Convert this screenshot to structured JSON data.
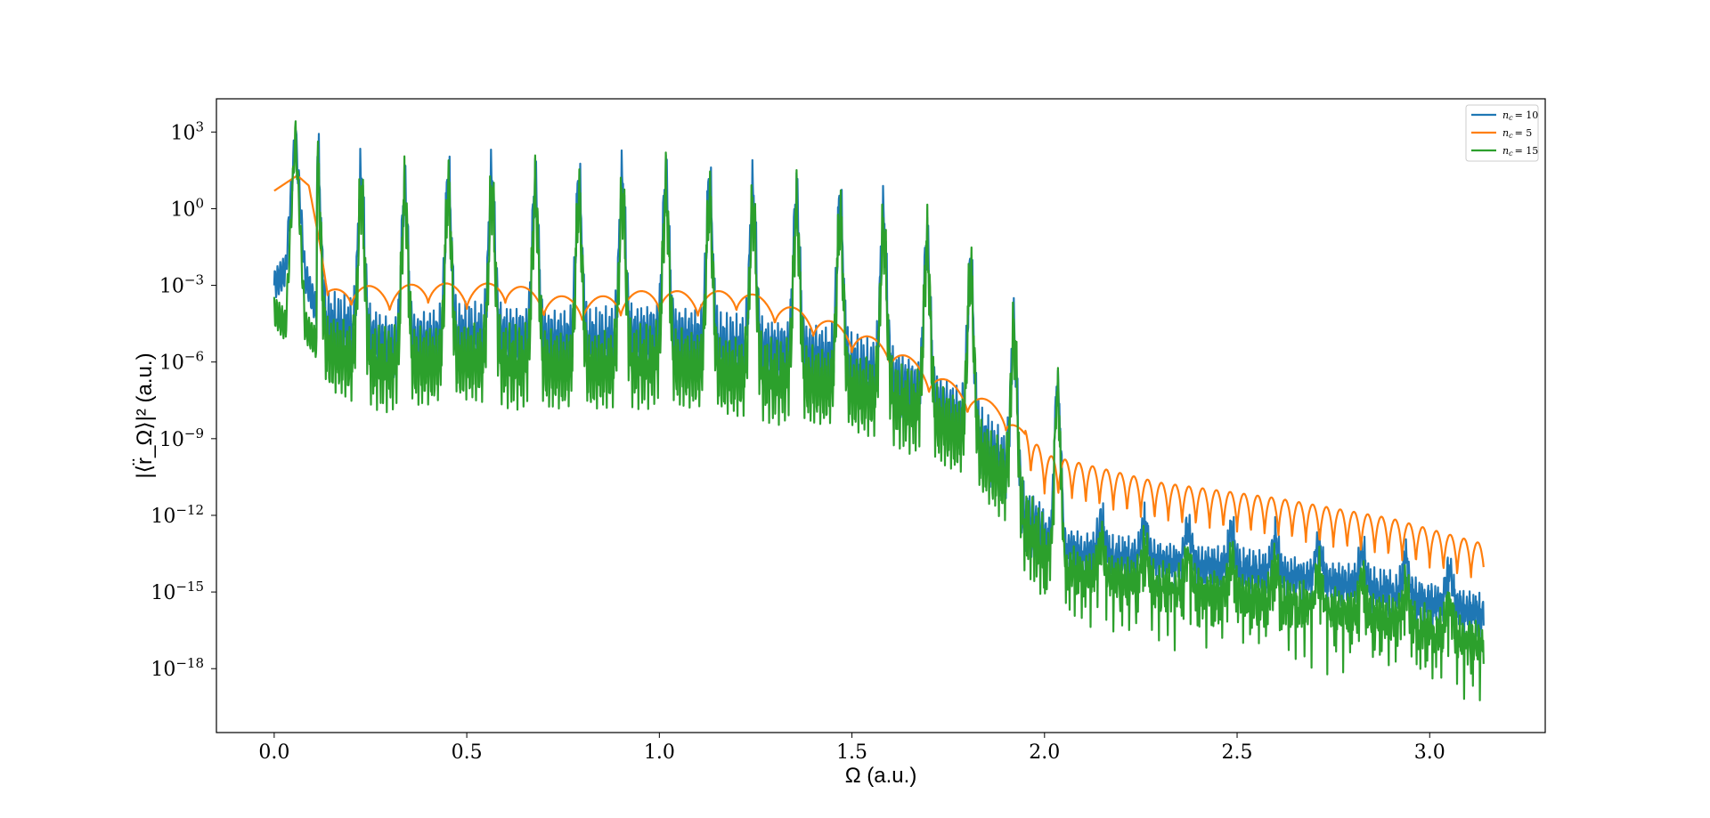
{
  "chart_data": {
    "type": "line",
    "title": "",
    "xlabel": "Ω (a.u.)",
    "ylabel": "|⟨r̈_Ω⟩|² (a.u.)",
    "xlim": [
      -0.15,
      3.3
    ],
    "ylim_log10": [
      -20.5,
      4.3
    ],
    "yscale": "log",
    "grid": false,
    "legend_position": "top-right",
    "x_ticks": [
      0.0,
      0.5,
      1.0,
      1.5,
      2.0,
      2.5,
      3.0
    ],
    "x_tick_labels": [
      "0.0",
      "0.5",
      "1.0",
      "1.5",
      "2.0",
      "2.5",
      "3.0"
    ],
    "y_ticks_log10": [
      3,
      0,
      -3,
      -6,
      -9,
      -12,
      -15,
      -18
    ],
    "y_tick_labels": [
      "3",
      "0",
      "−3",
      "−6",
      "−9",
      "−12",
      "−15",
      "−18"
    ],
    "y_tick_base": "10",
    "series": [
      {
        "name": "n_c = 10",
        "legend_label": "n",
        "legend_sub": "c",
        "legend_value": "= 10",
        "color": "#1f77b4",
        "x": [
          0.0,
          0.03,
          0.055,
          0.08,
          0.12,
          0.2,
          0.3,
          0.5,
          0.8,
          1.0,
          1.2,
          1.4,
          1.5,
          1.6,
          1.7,
          1.8,
          1.9,
          1.95,
          2.0,
          2.1,
          2.3,
          2.5,
          2.7,
          2.9,
          3.14
        ],
        "log10y": [
          -3.0,
          -2.4,
          3.0,
          -2.6,
          -4.5,
          -4.8,
          -5.5,
          -5.0,
          -5.3,
          -5.0,
          -5.5,
          -5.8,
          -6.2,
          -6.7,
          -7.5,
          -8.5,
          -10.2,
          -12.2,
          -12.8,
          -13.4,
          -13.7,
          -14.0,
          -14.4,
          -14.9,
          -15.8
        ]
      },
      {
        "name": "n_c = 5",
        "legend_label": "n",
        "legend_sub": "c",
        "legend_value": "= 5",
        "color": "#ff7f0e",
        "x": [
          0.0,
          0.03,
          0.06,
          0.09,
          0.12,
          0.14,
          0.2,
          0.3,
          0.4,
          0.5,
          0.6,
          0.7,
          0.8,
          0.9,
          1.0,
          1.1,
          1.2,
          1.3,
          1.4,
          1.5,
          1.6,
          1.7,
          1.8,
          1.9,
          2.0,
          2.3,
          2.6,
          2.9,
          3.14
        ],
        "log10y": [
          0.7,
          1.0,
          1.3,
          0.9,
          -1.5,
          -3.5,
          -3.2,
          -3.4,
          -3.1,
          -3.3,
          -3.1,
          -3.6,
          -3.8,
          -3.6,
          -3.4,
          -3.6,
          -3.4,
          -3.9,
          -4.4,
          -5.0,
          -5.6,
          -6.6,
          -7.4,
          -8.1,
          -10.1,
          -11.2,
          -11.8,
          -12.6,
          -13.6
        ]
      },
      {
        "name": "n_c = 15",
        "legend_label": "n",
        "legend_sub": "c",
        "legend_value": "= 15",
        "color": "#2ca02c",
        "x": [
          0.0,
          0.03,
          0.055,
          0.08,
          0.12,
          0.2,
          0.3,
          0.5,
          0.8,
          1.0,
          1.2,
          1.4,
          1.5,
          1.6,
          1.7,
          1.8,
          1.9,
          1.95,
          2.0,
          2.1,
          2.3,
          2.5,
          2.7,
          2.9,
          3.14
        ],
        "log10y": [
          -4.0,
          -4.6,
          3.0,
          -4.6,
          -5.5,
          -6.0,
          -6.3,
          -6.0,
          -6.4,
          -6.1,
          -6.6,
          -6.9,
          -7.2,
          -7.6,
          -8.2,
          -9.1,
          -10.8,
          -12.6,
          -13.6,
          -14.2,
          -14.7,
          -15.1,
          -15.5,
          -16.0,
          -17.0
        ]
      }
    ]
  }
}
